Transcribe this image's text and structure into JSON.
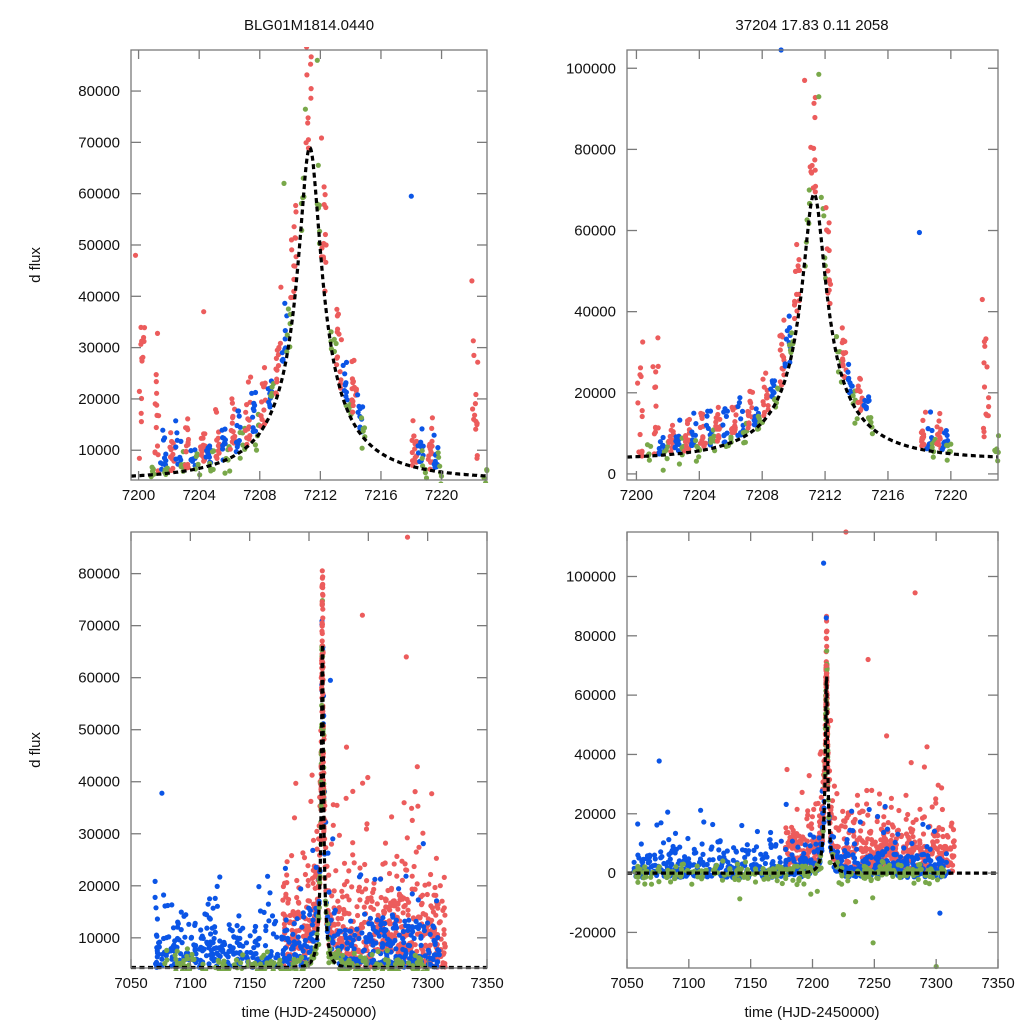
{
  "figure": {
    "panel_titles": {
      "top_left": "BLG01M1814.0440",
      "top_right": "37204  17.83  0.11  2058"
    }
  },
  "colors": {
    "red": "#ec5c5c",
    "blue": "#0b55e6",
    "green": "#79a84a",
    "model": "#000000",
    "frame": "#7a7a7a"
  },
  "chart_data": [
    {
      "id": "top-left",
      "type": "scatter",
      "title": "BLG01M1814.0440",
      "xlabel": "",
      "ylabel": "d flux",
      "xlim": [
        7199.5,
        7223
      ],
      "ylim": [
        4200,
        88000
      ],
      "xticks": [
        7200,
        7204,
        7208,
        7212,
        7216,
        7220
      ],
      "xtick_labels": [
        "7200",
        "7204",
        "7208",
        "7212",
        "7216",
        "7220"
      ],
      "yticks": [
        10000,
        20000,
        30000,
        40000,
        50000,
        60000,
        70000,
        80000
      ],
      "ytick_labels": [
        "10000",
        "20000",
        "30000",
        "40000",
        "50000",
        "60000",
        "70000",
        "80000"
      ],
      "grid": false,
      "model": {
        "name": "microlensing fit",
        "style": "dashed",
        "t0": 7211.3,
        "peak": 69000,
        "baseline": 4300,
        "tE_days": 2.2
      },
      "series": [
        {
          "name": "red",
          "color": "#ec5c5c",
          "peak_range": [
            60000,
            86000
          ],
          "outliers": [
            [
              7222,
              43000
            ],
            [
              7199.8,
              48000
            ],
            [
              7204.3,
              37000
            ]
          ]
        },
        {
          "name": "blue",
          "color": "#0b55e6",
          "outliers": [
            [
              7218,
              59500
            ]
          ]
        },
        {
          "name": "green",
          "color": "#79a84a",
          "outliers": [
            [
              7209.6,
              62000
            ],
            [
              7211.8,
              86000
            ]
          ]
        }
      ]
    },
    {
      "id": "top-right",
      "type": "scatter",
      "title": "37204  17.83  0.11  2058",
      "xlabel": "",
      "ylabel": "",
      "xlim": [
        7199.4,
        7223
      ],
      "ylim": [
        -1500,
        104500
      ],
      "xticks": [
        7200,
        7204,
        7208,
        7212,
        7216,
        7220
      ],
      "xtick_labels": [
        "7200",
        "7204",
        "7208",
        "7212",
        "7216",
        "7220"
      ],
      "yticks": [
        0,
        20000,
        40000,
        60000,
        80000,
        100000
      ],
      "ytick_labels": [
        "0",
        "20000",
        "40000",
        "60000",
        "80000",
        "100000"
      ],
      "grid": false,
      "model": {
        "name": "microlensing fit",
        "style": "dashed",
        "t0": 7211.3,
        "peak": 69000,
        "baseline": 3500,
        "tE_days": 2.2
      },
      "series": [
        {
          "name": "red",
          "color": "#ec5c5c",
          "outliers": [
            [
              7210.7,
              97000
            ],
            [
              7222,
              43000
            ]
          ]
        },
        {
          "name": "blue",
          "color": "#0b55e6",
          "outliers": [
            [
              7209.2,
              104500
            ],
            [
              7218,
              59500
            ]
          ]
        },
        {
          "name": "green",
          "color": "#79a84a",
          "outliers": [
            [
              7211.6,
              98500
            ],
            [
              7211.6,
              93000
            ]
          ]
        }
      ]
    },
    {
      "id": "bottom-left",
      "type": "scatter",
      "title": "",
      "xlabel": "time (HJD-2450000)",
      "ylabel": "d flux",
      "xlim": [
        7050,
        7350
      ],
      "ylim": [
        4200,
        88000
      ],
      "xticks": [
        7050,
        7100,
        7150,
        7200,
        7250,
        7300,
        7350
      ],
      "xtick_labels": [
        "7050",
        "7100",
        "7150",
        "7200",
        "7250",
        "7300",
        "7350"
      ],
      "yticks": [
        10000,
        20000,
        30000,
        40000,
        50000,
        60000,
        70000,
        80000
      ],
      "ytick_labels": [
        "10000",
        "20000",
        "30000",
        "40000",
        "50000",
        "60000",
        "70000",
        "80000"
      ],
      "grid": false,
      "model": {
        "name": "microlensing fit",
        "style": "dashed",
        "t0": 7211.3,
        "peak": 69000,
        "baseline": 4300,
        "tE_days": 2.2
      },
      "series": [
        {
          "name": "red",
          "color": "#ec5c5c",
          "time_range": [
            7178,
            7315
          ],
          "outliers": [
            [
              7283,
              87000
            ],
            [
              7245,
              72000
            ],
            [
              7282,
              64000
            ]
          ]
        },
        {
          "name": "blue",
          "color": "#0b55e6",
          "time_range": [
            7070,
            7310
          ],
          "outliers": [
            [
              7076,
              37800
            ],
            [
              7218,
              59500
            ]
          ]
        },
        {
          "name": "green",
          "color": "#79a84a",
          "time_range": [
            7075,
            7300
          ],
          "outliers": []
        }
      ]
    },
    {
      "id": "bottom-right",
      "type": "scatter",
      "title": "",
      "xlabel": "time (HJD-2450000)",
      "ylabel": "",
      "xlim": [
        7050,
        7350
      ],
      "ylim": [
        -32000,
        115000
      ],
      "xticks": [
        7050,
        7100,
        7150,
        7200,
        7250,
        7300,
        7350
      ],
      "xtick_labels": [
        "7050",
        "7100",
        "7150",
        "7200",
        "7250",
        "7300",
        "7350"
      ],
      "yticks": [
        -20000,
        0,
        20000,
        40000,
        60000,
        80000,
        100000
      ],
      "ytick_labels": [
        "-20000",
        "0",
        "20000",
        "40000",
        "60000",
        "80000",
        "100000"
      ],
      "grid": false,
      "model": {
        "name": "microlensing fit",
        "style": "dashed",
        "t0": 7211.3,
        "peak": 69000,
        "baseline": 0,
        "tE_days": 2.2
      },
      "series": [
        {
          "name": "red",
          "color": "#ec5c5c",
          "time_range": [
            7178,
            7315
          ],
          "outliers": [
            [
              7227,
              115000
            ],
            [
              7283,
              94500
            ],
            [
              7245,
              72000
            ]
          ]
        },
        {
          "name": "blue",
          "color": "#0b55e6",
          "time_range": [
            7055,
            7310
          ],
          "outliers": [
            [
              7076,
              37800
            ],
            [
              7209,
              104500
            ],
            [
              7303,
              -13500
            ]
          ]
        },
        {
          "name": "green",
          "color": "#79a84a",
          "time_range": [
            7055,
            7310
          ],
          "outliers": [
            [
              7249,
              -23500
            ],
            [
              7300,
              -31500
            ],
            [
              7225,
              -14000
            ]
          ]
        }
      ]
    }
  ]
}
